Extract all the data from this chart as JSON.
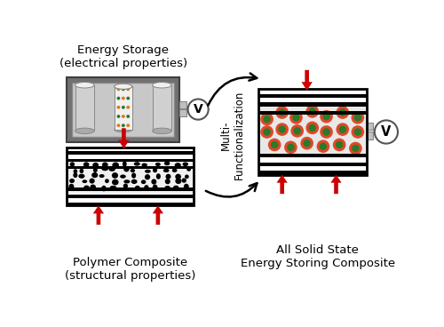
{
  "bg_color": "#ffffff",
  "energy_storage_label": "Energy Storage\n(electrical properties)",
  "polymer_composite_label": "Polymer Composite\n(structural properties)",
  "all_solid_label": "All Solid State\nEnergy Storing Composite",
  "multi_label": "Multi-\nFunctionalization",
  "arrow_color": "#cc0000",
  "black": "#000000",
  "dark_gray": "#606060",
  "mid_gray": "#999999",
  "light_gray": "#c8c8c8",
  "very_light_gray": "#e4e4e4",
  "green_dot": "#2a7a2a",
  "red_ring": "#e04828",
  "orange_dot": "#e07818",
  "white": "#ffffff",
  "battery_outer": "#707070",
  "battery_inner_bg": "#c8c8c8",
  "cyl_body": "#d0d0d0",
  "cyl_top": "#f0f0f0",
  "cyl_shadow": "#aaaaaa"
}
